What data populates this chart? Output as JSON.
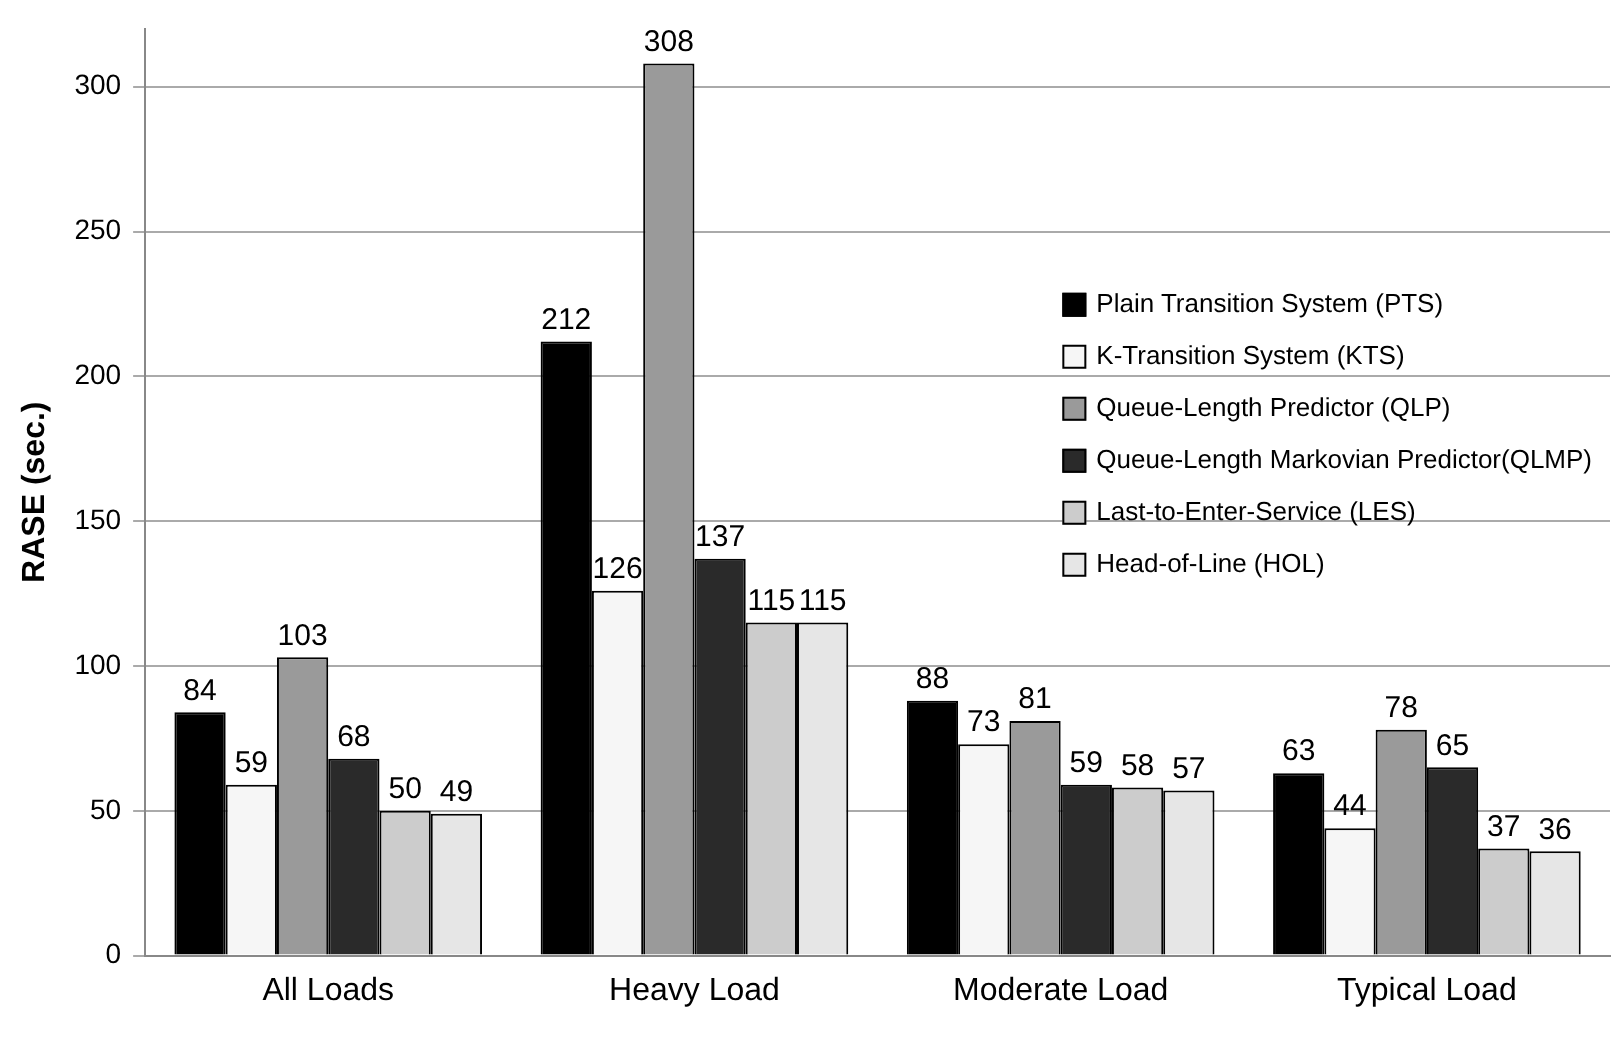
{
  "chart_data": {
    "type": "bar",
    "ylabel": "RASE (sec.)",
    "categories": [
      "All Loads",
      "Heavy Load",
      "Moderate Load",
      "Typical Load"
    ],
    "series": [
      {
        "name": "Plain Transition System (PTS)",
        "color": "#000000",
        "values": [
          84,
          212,
          88,
          63
        ]
      },
      {
        "name": "K-Transition System (KTS)",
        "color": "#f6f6f6",
        "values": [
          59,
          126,
          73,
          44
        ]
      },
      {
        "name": "Queue-Length Predictor (QLP)",
        "color": "#9a9a9a",
        "values": [
          103,
          308,
          81,
          78
        ]
      },
      {
        "name": "Queue-Length Markovian Predictor(QLMP)",
        "color": "#2a2a2a",
        "values": [
          68,
          137,
          59,
          65
        ]
      },
      {
        "name": "Last-to-Enter-Service (LES)",
        "color": "#cccccc",
        "values": [
          50,
          115,
          58,
          37
        ]
      },
      {
        "name": "Head-of-Line (HOL)",
        "color": "#e6e6e6",
        "values": [
          49,
          115,
          57,
          36
        ]
      }
    ],
    "ylim": [
      0,
      320
    ],
    "yticks": [
      0,
      50,
      100,
      150,
      200,
      250,
      300
    ],
    "grid": "y",
    "legend": "top right",
    "data_labels": true
  }
}
